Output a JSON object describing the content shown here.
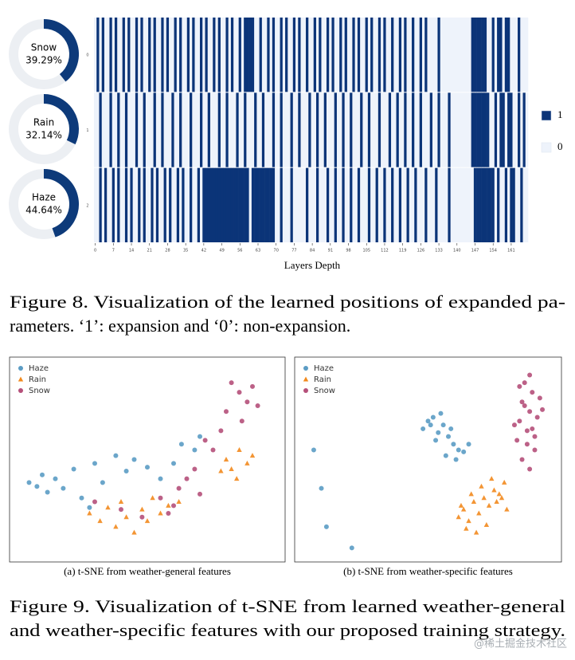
{
  "figure8": {
    "donuts": [
      {
        "label": "Snow",
        "value": 39.29,
        "value_label": "39.29%"
      },
      {
        "label": "Rain",
        "value": 32.14,
        "value_label": "32.14%"
      },
      {
        "label": "Haze",
        "value": 44.64,
        "value_label": "44.64%"
      }
    ],
    "heatmap": {
      "row_labels": [
        "0",
        "1",
        "2"
      ],
      "xlim": [
        0,
        168
      ],
      "xticks": [
        0,
        7,
        14,
        21,
        28,
        35,
        42,
        49,
        56,
        63,
        70,
        77,
        84,
        91,
        98,
        105,
        112,
        119,
        126,
        133,
        140,
        147,
        154,
        161
      ],
      "xlabel": "Layers Depth",
      "colors": {
        "1": "#0b3478",
        "0": "#eef3fb"
      },
      "legend": [
        "1",
        "0"
      ],
      "rows": [
        [
          0,
          1,
          0,
          1,
          0,
          0,
          1,
          0,
          1,
          0,
          0,
          1,
          0,
          1,
          0,
          0,
          1,
          0,
          1,
          0,
          0,
          1,
          0,
          1,
          0,
          0,
          1,
          0,
          1,
          0,
          0,
          1,
          0,
          1,
          0,
          0,
          1,
          0,
          1,
          0,
          0,
          1,
          0,
          1,
          0,
          0,
          1,
          0,
          1,
          0,
          0,
          1,
          0,
          1,
          0,
          0,
          1,
          0,
          1,
          1,
          1,
          1,
          0,
          0,
          1,
          0,
          0,
          1,
          0,
          1,
          0,
          0,
          1,
          0,
          1,
          0,
          0,
          1,
          0,
          1,
          0,
          0,
          1,
          0,
          0,
          1,
          0,
          1,
          0,
          0,
          1,
          0,
          1,
          0,
          0,
          1,
          0,
          1,
          0,
          0,
          1,
          0,
          1,
          0,
          0,
          1,
          0,
          1,
          0,
          0,
          1,
          0,
          1,
          0,
          0,
          1,
          0,
          0,
          1,
          0,
          1,
          0,
          0,
          1,
          0,
          0,
          1,
          0,
          1,
          0,
          0,
          0,
          0,
          1,
          0,
          0,
          0,
          0,
          0,
          0,
          0,
          0,
          0,
          0,
          0,
          0,
          1,
          1,
          1,
          1,
          1,
          1,
          0,
          0,
          1,
          0,
          1,
          1,
          0,
          1,
          1,
          0,
          0,
          0,
          1,
          0,
          0,
          0
        ],
        [
          0,
          0,
          1,
          0,
          0,
          0,
          1,
          0,
          0,
          1,
          0,
          0,
          1,
          0,
          0,
          0,
          1,
          0,
          0,
          1,
          0,
          0,
          0,
          1,
          0,
          0,
          1,
          0,
          0,
          0,
          1,
          0,
          0,
          1,
          0,
          0,
          0,
          1,
          0,
          0,
          0,
          1,
          0,
          0,
          1,
          0,
          0,
          0,
          1,
          0,
          0,
          1,
          0,
          0,
          0,
          1,
          0,
          0,
          1,
          0,
          0,
          0,
          1,
          0,
          0,
          1,
          0,
          0,
          0,
          1,
          0,
          0,
          1,
          0,
          0,
          0,
          1,
          0,
          0,
          1,
          0,
          0,
          0,
          1,
          0,
          0,
          1,
          0,
          0,
          1,
          0,
          0,
          0,
          1,
          0,
          0,
          1,
          0,
          0,
          1,
          0,
          0,
          0,
          1,
          0,
          0,
          1,
          0,
          0,
          0,
          1,
          0,
          0,
          0,
          1,
          0,
          0,
          1,
          0,
          0,
          1,
          0,
          0,
          1,
          0,
          0,
          1,
          0,
          0,
          0,
          1,
          0,
          0,
          1,
          0,
          0,
          0,
          1,
          0,
          0,
          0,
          0,
          0,
          0,
          0,
          0,
          1,
          1,
          1,
          1,
          1,
          1,
          1,
          0,
          0,
          1,
          0,
          1,
          1,
          0,
          1,
          1,
          0,
          0,
          1,
          0,
          1,
          0
        ],
        [
          0,
          0,
          1,
          0,
          1,
          0,
          0,
          1,
          0,
          1,
          0,
          0,
          1,
          0,
          1,
          0,
          0,
          1,
          0,
          1,
          0,
          0,
          1,
          0,
          1,
          0,
          0,
          1,
          0,
          1,
          0,
          0,
          1,
          0,
          1,
          0,
          0,
          1,
          0,
          0,
          1,
          0,
          1,
          1,
          1,
          1,
          1,
          1,
          1,
          1,
          1,
          1,
          1,
          1,
          1,
          1,
          1,
          1,
          1,
          1,
          0,
          1,
          1,
          1,
          1,
          1,
          1,
          1,
          1,
          1,
          0,
          0,
          1,
          0,
          0,
          0,
          1,
          0,
          0,
          0,
          0,
          0,
          1,
          0,
          0,
          0,
          1,
          0,
          0,
          0,
          1,
          0,
          0,
          1,
          0,
          0,
          1,
          0,
          0,
          1,
          0,
          0,
          1,
          0,
          0,
          0,
          1,
          0,
          0,
          1,
          0,
          0,
          1,
          0,
          0,
          1,
          0,
          0,
          1,
          0,
          0,
          1,
          0,
          0,
          1,
          0,
          0,
          0,
          1,
          0,
          0,
          0,
          1,
          0,
          0,
          0,
          0,
          1,
          0,
          0,
          0,
          0,
          0,
          0,
          0,
          0,
          0,
          1,
          1,
          1,
          1,
          1,
          1,
          1,
          1,
          0,
          1,
          0,
          0,
          1,
          0,
          1,
          1,
          0,
          0,
          1,
          0,
          0
        ]
      ]
    },
    "caption": [
      "Figure 8.  Visualization of the learned positions of expanded pa-",
      "rameters. ‘1’: expansion and ‘0’: non-expansion."
    ]
  },
  "figure9": {
    "panels": [
      {
        "type": "scatter",
        "subcaption": "(a)  t-SNE from weather-general features",
        "xlim": [
          0,
          100
        ],
        "ylim": [
          0,
          100
        ],
        "series": [
          {
            "name": "Haze",
            "color": "#5b9cc4",
            "marker": "circle",
            "x": [
              5,
              8,
              10,
              12,
              15,
              18,
              22,
              25,
              30,
              33,
              38,
              42,
              45,
              50,
              55,
              60,
              63,
              68,
              70,
              28
            ],
            "y": [
              38,
              36,
              42,
              33,
              40,
              35,
              45,
              30,
              48,
              38,
              52,
              44,
              50,
              46,
              40,
              48,
              58,
              55,
              62,
              25
            ]
          },
          {
            "name": "Rain",
            "color": "#f28a1e",
            "marker": "triangle",
            "x": [
              28,
              32,
              35,
              38,
              40,
              42,
              45,
              48,
              50,
              52,
              55,
              58,
              62,
              80,
              82,
              85,
              88,
              84,
              90,
              78
            ],
            "y": [
              22,
              18,
              25,
              15,
              28,
              20,
              12,
              24,
              18,
              30,
              22,
              26,
              28,
              50,
              45,
              55,
              48,
              40,
              52,
              44
            ]
          },
          {
            "name": "Snow",
            "color": "#b5507a",
            "marker": "circle",
            "x": [
              30,
              40,
              48,
              55,
              58,
              62,
              65,
              68,
              72,
              75,
              78,
              80,
              85,
              88,
              90,
              92,
              86,
              70,
              60,
              82
            ],
            "y": [
              28,
              24,
              20,
              30,
              22,
              35,
              40,
              45,
              60,
              55,
              65,
              75,
              85,
              80,
              88,
              78,
              70,
              32,
              26,
              90
            ]
          }
        ]
      },
      {
        "type": "scatter",
        "subcaption": "(b)  t-SNE from weather-specific features",
        "xlim": [
          0,
          100
        ],
        "ylim": [
          0,
          100
        ],
        "series": [
          {
            "name": "Haze",
            "color": "#5b9cc4",
            "marker": "circle",
            "x": [
              48,
              50,
              52,
              54,
              56,
              58,
              60,
              62,
              55,
              53,
              57,
              61,
              64,
              66,
              59,
              51,
              5,
              8,
              10,
              20
            ],
            "y": [
              66,
              70,
              72,
              64,
              68,
              62,
              58,
              55,
              74,
              60,
              52,
              50,
              54,
              58,
              66,
              68,
              55,
              35,
              15,
              4
            ]
          },
          {
            "name": "Rain",
            "color": "#f28a1e",
            "marker": "triangle",
            "x": [
              62,
              64,
              66,
              68,
              70,
              72,
              74,
              76,
              78,
              80,
              65,
              69,
              73,
              77,
              71,
              67,
              63,
              75,
              79,
              81
            ],
            "y": [
              20,
              24,
              18,
              28,
              22,
              30,
              26,
              34,
              32,
              38,
              14,
              12,
              16,
              28,
              36,
              32,
              26,
              40,
              30,
              24
            ]
          },
          {
            "name": "Snow",
            "color": "#b5507a",
            "marker": "circle",
            "x": [
              85,
              86,
              87,
              88,
              89,
              90,
              91,
              92,
              93,
              94,
              87,
              89,
              91,
              90,
              88,
              86,
              92,
              95,
              84,
              90
            ],
            "y": [
              60,
              70,
              80,
              90,
              65,
              75,
              85,
              55,
              72,
              82,
              50,
              58,
              66,
              94,
              78,
              88,
              62,
              76,
              68,
              45
            ]
          }
        ]
      }
    ],
    "caption": [
      "Figure 9.  Visualization of t-SNE from learned weather-general",
      "and weather-specific features with our proposed training strategy."
    ]
  },
  "watermark": "@稀土掘金技术社区"
}
